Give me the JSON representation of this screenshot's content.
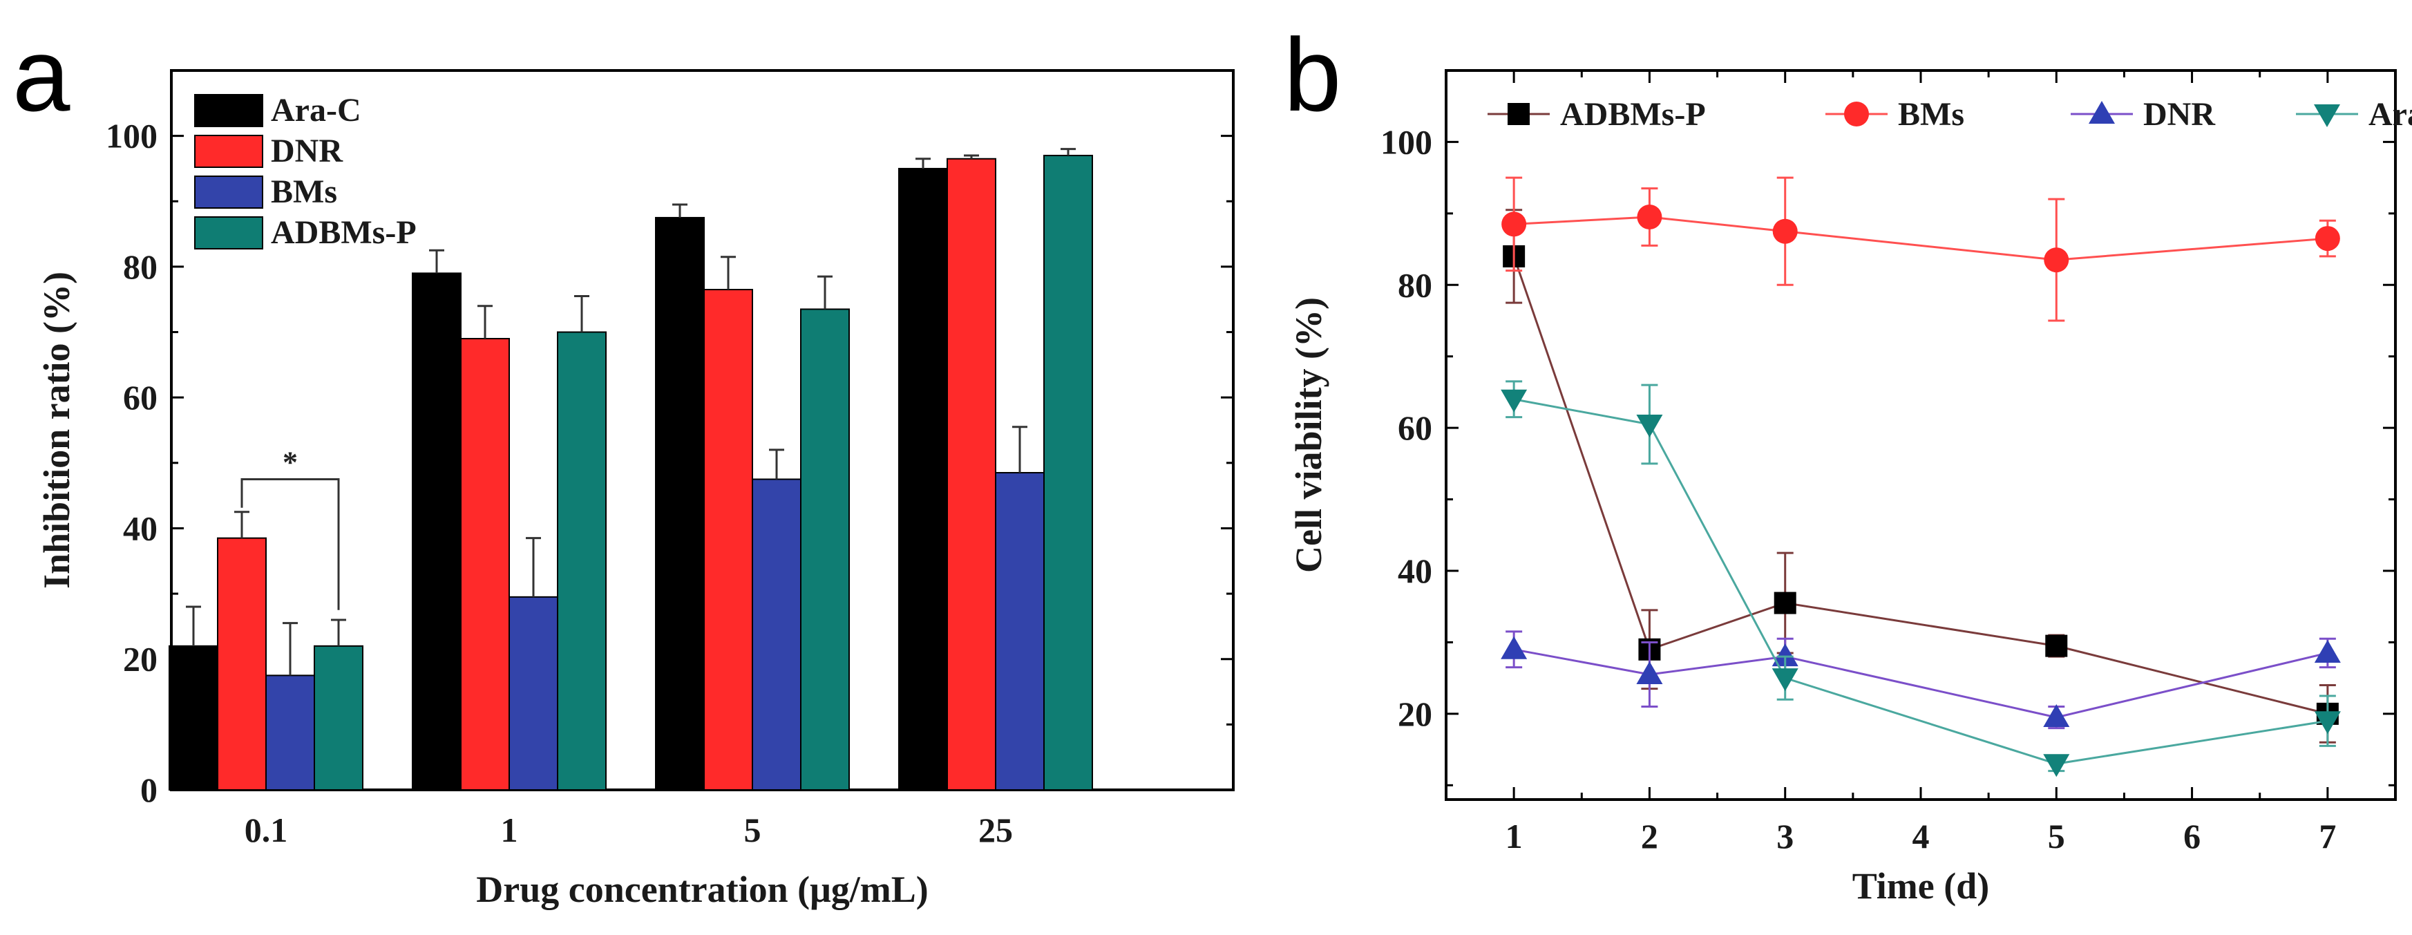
{
  "panel_labels": {
    "a": "a",
    "b": "b"
  },
  "chart_data": [
    {
      "type": "bar",
      "panel": "a",
      "categories": [
        "0.1",
        "1",
        "5",
        "25"
      ],
      "xlabel": "Drug concentration (μg/mL)",
      "ylabel": "Inhibition ratio (%)",
      "ylim": [
        0,
        110
      ],
      "yticks": [
        0,
        20,
        40,
        60,
        80,
        100
      ],
      "legend_position": "top-left",
      "series": [
        {
          "name": "Ara-C",
          "color": "#000000",
          "values": [
            22,
            79,
            87.5,
            95
          ],
          "errors": [
            6,
            3.5,
            2,
            1.5
          ]
        },
        {
          "name": "DNR",
          "color": "#ff2a2a",
          "values": [
            38.5,
            69,
            76.5,
            96.5
          ],
          "errors": [
            4,
            5,
            5,
            0.5
          ]
        },
        {
          "name": "BMs",
          "color": "#3344aa",
          "values": [
            17.5,
            29.5,
            47.5,
            48.5
          ],
          "errors": [
            8,
            9,
            4.5,
            7
          ]
        },
        {
          "name": "ADBMs-P",
          "color": "#0f7d73",
          "values": [
            22,
            70,
            73.5,
            97
          ],
          "errors": [
            4,
            5.5,
            5,
            1
          ]
        }
      ],
      "annotations": [
        {
          "text": "*",
          "between_series": [
            "DNR",
            "ADBMs-P"
          ],
          "category": "0.1"
        }
      ]
    },
    {
      "type": "line",
      "panel": "b",
      "x": [
        1,
        2,
        3,
        5,
        7
      ],
      "xlabel": "Time (d)",
      "ylabel": "Cell viability (%)",
      "xlim": [
        0.5,
        7.5
      ],
      "xticks": [
        1,
        2,
        3,
        4,
        5,
        6,
        7
      ],
      "ylim": [
        8,
        110
      ],
      "yticks": [
        20,
        40,
        60,
        80,
        100
      ],
      "legend_position": "top",
      "series": [
        {
          "name": "ADBMs-P",
          "color": "#000000",
          "line_color": "#7a3b3b",
          "marker": "square",
          "values": [
            84,
            29,
            35.5,
            29.5,
            20
          ],
          "errors": [
            6.5,
            5.5,
            7,
            1.5,
            4
          ]
        },
        {
          "name": "BMs",
          "color": "#ff2a2a",
          "line_color": "#ff5050",
          "marker": "circle",
          "values": [
            88.5,
            89.5,
            87.5,
            83.5,
            86.5
          ],
          "errors": [
            6.5,
            4,
            7.5,
            8.5,
            2.5
          ]
        },
        {
          "name": "DNR",
          "color": "#2f3fb4",
          "line_color": "#7b4fc9",
          "marker": "triangle-up",
          "values": [
            29,
            25.5,
            28,
            19.5,
            28.5
          ],
          "errors": [
            2.5,
            4.5,
            2.5,
            1.5,
            2
          ]
        },
        {
          "name": "Ara-C",
          "color": "#12827a",
          "line_color": "#4aa89f",
          "marker": "triangle-down",
          "values": [
            64,
            60.5,
            25,
            13,
            19
          ],
          "errors": [
            2.5,
            5.5,
            3,
            1,
            3.5
          ]
        }
      ]
    }
  ]
}
